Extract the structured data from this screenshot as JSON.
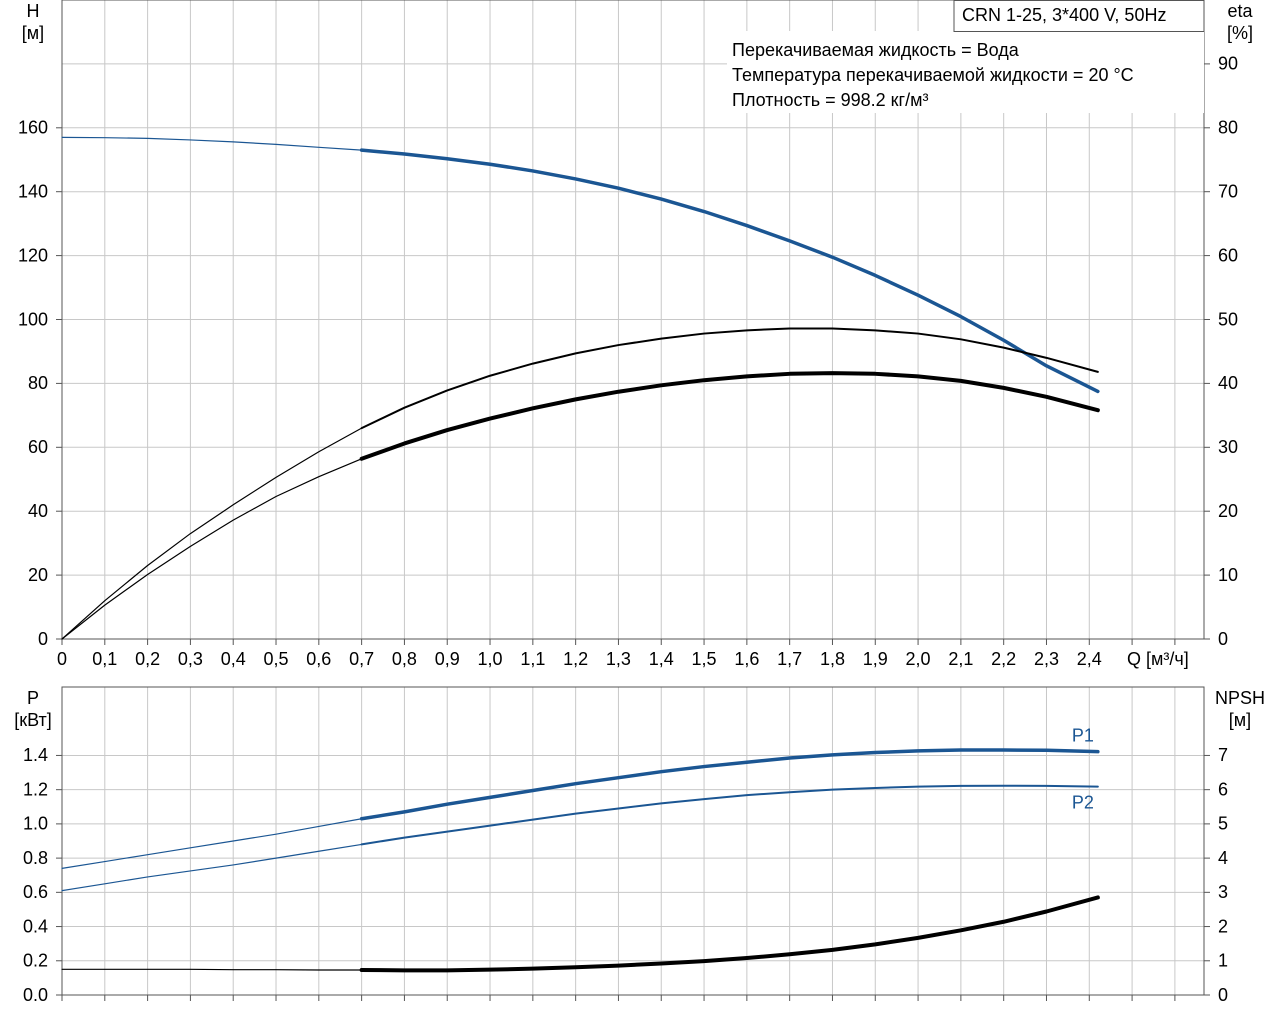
{
  "chart_data": [
    {
      "type": "line",
      "title": "CRN 1-25, 3*400 V, 50Hz",
      "annotations": [
        "Перекачиваемая жидкость = Вода",
        "Температура перекачиваемой жидкости = 20 °C",
        "Плотность = 998.2 кг/м³"
      ],
      "xlabel": "Q [м³/ч]",
      "ylabel": [
        "H",
        "[м]"
      ],
      "y2label": [
        "eta",
        "[%]"
      ],
      "x": [
        0,
        0.1,
        0.2,
        0.3,
        0.4,
        0.5,
        0.6,
        0.7,
        0.8,
        0.9,
        1.0,
        1.1,
        1.2,
        1.3,
        1.4,
        1.5,
        1.6,
        1.7,
        1.8,
        1.9,
        2.0,
        2.1,
        2.2,
        2.3,
        2.42
      ],
      "xlim": [
        0,
        2.668
      ],
      "xticks": [
        0,
        {
          "value": 0.1,
          "label": "0,1"
        },
        {
          "value": 0.2,
          "label": "0,2"
        },
        {
          "value": 0.3,
          "label": "0,3"
        },
        {
          "value": 0.4,
          "label": "0,4"
        },
        {
          "value": 0.5,
          "label": "0,5"
        },
        {
          "value": 0.6,
          "label": "0,6"
        },
        {
          "value": 0.7,
          "label": "0,7"
        },
        {
          "value": 0.8,
          "label": "0,8"
        },
        {
          "value": 0.9,
          "label": "0,9"
        },
        {
          "value": 1.0,
          "label": "1,0"
        },
        {
          "value": 1.1,
          "label": "1,1"
        },
        {
          "value": 1.2,
          "label": "1,2"
        },
        {
          "value": 1.3,
          "label": "1,3"
        },
        {
          "value": 1.4,
          "label": "1,4"
        },
        {
          "value": 1.5,
          "label": "1,5"
        },
        {
          "value": 1.6,
          "label": "1,6"
        },
        {
          "value": 1.7,
          "label": "1,7"
        },
        {
          "value": 1.8,
          "label": "1,8"
        },
        {
          "value": 1.9,
          "label": "1,9"
        },
        {
          "value": 2.0,
          "label": "2,0"
        },
        {
          "value": 2.1,
          "label": "2,1"
        },
        {
          "value": 2.2,
          "label": "2,2"
        },
        {
          "value": 2.3,
          "label": "2,3"
        },
        {
          "value": 2.4,
          "label": "2,4"
        }
      ],
      "xgrid": [
        2.5,
        2.6
      ],
      "ylim": [
        0,
        200
      ],
      "yticks": [
        0,
        20,
        40,
        60,
        80,
        100,
        120,
        140,
        160
      ],
      "y2lim": [
        0,
        100
      ],
      "y2ticks": [
        0,
        10,
        20,
        30,
        40,
        50,
        60,
        70,
        80,
        90
      ],
      "grid": true,
      "series": [
        {
          "color": "#1b5693",
          "width": 1.2,
          "values": [
            157,
            156.9,
            156.7,
            156.2,
            155.6,
            154.8,
            153.9,
            153,
            null,
            null,
            null,
            null,
            null,
            null,
            null,
            null,
            null,
            null,
            null,
            null,
            null,
            null,
            null,
            null,
            null
          ]
        },
        {
          "color": "#1b5693",
          "width": 3.5,
          "values": [
            null,
            null,
            null,
            null,
            null,
            null,
            null,
            153,
            151.8,
            150.3,
            148.6,
            146.5,
            144,
            141.1,
            137.7,
            133.8,
            129.4,
            124.6,
            119.5,
            113.8,
            107.6,
            100.9,
            93.5,
            85.5,
            77.5
          ]
        },
        {
          "color": "#000000",
          "width": 1.2,
          "axis": "y2",
          "values": [
            0,
            6,
            11.5,
            16.5,
            21,
            25.3,
            29.3,
            33,
            null,
            null,
            null,
            null,
            null,
            null,
            null,
            null,
            null,
            null,
            null,
            null,
            null,
            null,
            null,
            null,
            null
          ]
        },
        {
          "color": "#000000",
          "width": 2,
          "axis": "y2",
          "values": [
            null,
            null,
            null,
            null,
            null,
            null,
            null,
            33,
            36.2,
            38.9,
            41.2,
            43.1,
            44.7,
            46,
            47,
            47.8,
            48.3,
            48.6,
            48.6,
            48.3,
            47.8,
            46.9,
            45.6,
            44,
            41.8
          ]
        },
        {
          "color": "#000000",
          "width": 1.2,
          "axis": "y2",
          "values": [
            0,
            5.3,
            10.1,
            14.5,
            18.6,
            22.3,
            25.4,
            28.2,
            null,
            null,
            null,
            null,
            null,
            null,
            null,
            null,
            null,
            null,
            null,
            null,
            null,
            null,
            null,
            null,
            null
          ]
        },
        {
          "color": "#000000",
          "width": 4,
          "axis": "y2",
          "values": [
            null,
            null,
            null,
            null,
            null,
            null,
            null,
            28.2,
            30.6,
            32.7,
            34.5,
            36.1,
            37.5,
            38.7,
            39.7,
            40.5,
            41.1,
            41.5,
            41.6,
            41.5,
            41.1,
            40.4,
            39.3,
            37.9,
            35.8
          ]
        }
      ]
    },
    {
      "type": "line",
      "ylabel": [
        "P",
        "[кВт]"
      ],
      "y2label": [
        "NPSH",
        "[м]"
      ],
      "x": [
        0,
        0.1,
        0.2,
        0.3,
        0.4,
        0.5,
        0.6,
        0.7,
        0.8,
        0.9,
        1.0,
        1.1,
        1.2,
        1.3,
        1.4,
        1.5,
        1.6,
        1.7,
        1.8,
        1.9,
        2.0,
        2.1,
        2.2,
        2.3,
        2.42
      ],
      "xlim": [
        0,
        2.668
      ],
      "xticks": [
        0,
        0.1,
        0.2,
        0.3,
        0.4,
        0.5,
        0.6,
        0.7,
        0.8,
        0.9,
        1,
        1.1,
        1.2,
        1.3,
        1.4,
        1.5,
        1.6,
        1.7,
        1.8,
        1.9,
        2,
        2.1,
        2.2,
        2.3,
        2.4,
        2.5,
        2.6
      ],
      "xtick_labels": false,
      "ylim": [
        0,
        1.8
      ],
      "yticks": [
        {
          "value": 0,
          "label": "0.0"
        },
        0.2,
        0.4,
        0.6,
        0.8,
        {
          "value": 1,
          "label": "1.0"
        },
        1.2,
        1.4
      ],
      "y2lim": [
        0,
        9
      ],
      "y2ticks": [
        0,
        1,
        2,
        3,
        4,
        5,
        6,
        7
      ],
      "grid": true,
      "series": [
        {
          "color": "#1b5693",
          "width": 1.2,
          "values": [
            0.74,
            0.78,
            0.82,
            0.86,
            0.9,
            0.94,
            0.985,
            1.03,
            null,
            null,
            null,
            null,
            null,
            null,
            null,
            null,
            null,
            null,
            null,
            null,
            null,
            null,
            null,
            null,
            null
          ]
        },
        {
          "name": "P1",
          "label_pos": "above",
          "color": "#1b5693",
          "width": 3.5,
          "values": [
            null,
            null,
            null,
            null,
            null,
            null,
            null,
            1.03,
            1.07,
            1.115,
            1.155,
            1.195,
            1.235,
            1.27,
            1.305,
            1.335,
            1.36,
            1.385,
            1.403,
            1.417,
            1.427,
            1.432,
            1.432,
            1.43,
            1.422
          ]
        },
        {
          "color": "#1b5693",
          "width": 1.2,
          "values": [
            0.61,
            0.65,
            0.69,
            0.725,
            0.76,
            0.8,
            0.84,
            0.88,
            null,
            null,
            null,
            null,
            null,
            null,
            null,
            null,
            null,
            null,
            null,
            null,
            null,
            null,
            null,
            null,
            null
          ]
        },
        {
          "name": "P2",
          "label_pos": "below",
          "color": "#1b5693",
          "width": 2,
          "values": [
            null,
            null,
            null,
            null,
            null,
            null,
            null,
            0.88,
            0.92,
            0.955,
            0.99,
            1.025,
            1.06,
            1.09,
            1.12,
            1.145,
            1.168,
            1.185,
            1.2,
            1.21,
            1.218,
            1.222,
            1.223,
            1.222,
            1.218
          ]
        },
        {
          "color": "#000000",
          "width": 1.2,
          "axis": "y2",
          "values": [
            0.75,
            0.75,
            0.75,
            0.75,
            0.74,
            0.74,
            0.73,
            0.73,
            null,
            null,
            null,
            null,
            null,
            null,
            null,
            null,
            null,
            null,
            null,
            null,
            null,
            null,
            null,
            null,
            null
          ]
        },
        {
          "color": "#000000",
          "width": 4,
          "axis": "y2",
          "values": [
            null,
            null,
            null,
            null,
            null,
            null,
            null,
            0.73,
            0.72,
            0.72,
            0.74,
            0.77,
            0.81,
            0.86,
            0.92,
            0.99,
            1.08,
            1.19,
            1.32,
            1.48,
            1.67,
            1.89,
            2.14,
            2.44,
            2.85
          ]
        }
      ]
    }
  ]
}
